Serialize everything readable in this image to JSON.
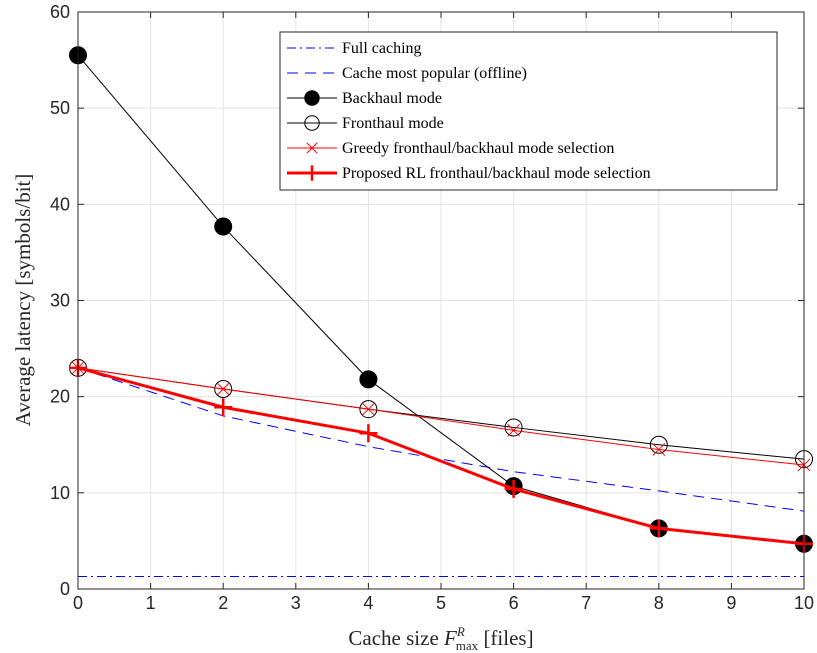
{
  "chart_data": {
    "type": "line",
    "xlabel": {
      "prefix": "Cache size ",
      "var": "F",
      "sup": "R",
      "sub": "max",
      "suffix": " [files]"
    },
    "ylabel": "Average latency [symbols/bit]",
    "xlim": [
      0,
      10
    ],
    "ylim": [
      0,
      60
    ],
    "xticks": [
      0,
      1,
      2,
      3,
      4,
      5,
      6,
      7,
      8,
      9,
      10
    ],
    "yticks": [
      0,
      10,
      20,
      30,
      40,
      50,
      60
    ],
    "grid": true,
    "legend_position": "top-right",
    "series": [
      {
        "name": "Full caching",
        "style": "dashdot",
        "color": "#0000ff",
        "marker": "none",
        "x": [
          0,
          10
        ],
        "y": [
          1.3,
          1.3
        ]
      },
      {
        "name": "Cache most popular (offline)",
        "style": "dashed",
        "color": "#0000ff",
        "marker": "none",
        "x": [
          0,
          2,
          4,
          6,
          8,
          10
        ],
        "y": [
          23,
          18,
          14.8,
          12.2,
          10.2,
          8.1
        ]
      },
      {
        "name": "Backhaul mode",
        "style": "solid",
        "color": "#000000",
        "marker": "filled-circle",
        "x": [
          0,
          2,
          4,
          6,
          8,
          10
        ],
        "y": [
          55.5,
          37.7,
          21.8,
          10.7,
          6.3,
          4.7
        ]
      },
      {
        "name": "Fronthaul mode",
        "style": "solid",
        "color": "#000000",
        "marker": "open-circle",
        "x": [
          0,
          2,
          4,
          6,
          8,
          10
        ],
        "y": [
          23,
          20.8,
          18.7,
          16.8,
          15,
          13.5
        ]
      },
      {
        "name": "Greedy fronthaul/backhaul mode selection",
        "style": "solid",
        "color": "#ff0000",
        "marker": "x",
        "x": [
          0,
          2,
          4,
          6,
          8,
          10
        ],
        "y": [
          23,
          20.8,
          18.7,
          16.5,
          14.5,
          12.9
        ]
      },
      {
        "name": "Proposed RL fronthaul/backhaul mode selection",
        "style": "thick",
        "color": "#ff0000",
        "marker": "plus",
        "x": [
          0,
          2,
          4,
          6,
          8,
          10
        ],
        "y": [
          23,
          18.9,
          16.2,
          10.4,
          6.3,
          4.7
        ]
      }
    ]
  }
}
